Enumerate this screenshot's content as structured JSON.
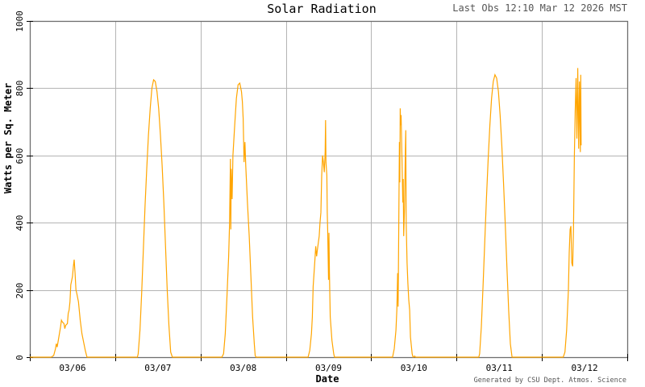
{
  "header": {
    "title": "Solar Radiation",
    "last_obs": "Last Obs 12:10 Mar 12 2026 MST"
  },
  "footer": {
    "credit": "Generated by CSU Dept. Atmos. Science"
  },
  "colors": {
    "series": "#ffa500",
    "grid": "#b4b4b4",
    "axis": "#6e6e6e",
    "text": "#000000",
    "muted_text": "#555555"
  },
  "chart_data": {
    "type": "line",
    "title": "Solar Radiation",
    "subtitle": "Last Obs 12:10 Mar 12 2026 MST",
    "xlabel": "Date",
    "ylabel": "Watts per Sq. Meter",
    "ylim": [
      0,
      1000
    ],
    "yticks": [
      0,
      200,
      400,
      600,
      800,
      1000
    ],
    "xticks": [
      "03/06",
      "03/07",
      "03/08",
      "03/09",
      "03/10",
      "03/11",
      "03/12"
    ],
    "xlim_days": [
      0,
      7
    ],
    "grid": true,
    "legend": null,
    "series": [
      {
        "name": "Solar Radiation",
        "x_unit": "days since 03/06 00:00",
        "points": [
          [
            0.0,
            0
          ],
          [
            0.25,
            0
          ],
          [
            0.28,
            5
          ],
          [
            0.3,
            25
          ],
          [
            0.31,
            40
          ],
          [
            0.32,
            30
          ],
          [
            0.34,
            60
          ],
          [
            0.36,
            90
          ],
          [
            0.37,
            110
          ],
          [
            0.38,
            105
          ],
          [
            0.4,
            100
          ],
          [
            0.41,
            85
          ],
          [
            0.42,
            95
          ],
          [
            0.44,
            100
          ],
          [
            0.45,
            130
          ],
          [
            0.46,
            140
          ],
          [
            0.47,
            165
          ],
          [
            0.48,
            215
          ],
          [
            0.5,
            240
          ],
          [
            0.51,
            270
          ],
          [
            0.52,
            290
          ],
          [
            0.53,
            250
          ],
          [
            0.54,
            200
          ],
          [
            0.55,
            190
          ],
          [
            0.57,
            165
          ],
          [
            0.59,
            110
          ],
          [
            0.61,
            70
          ],
          [
            0.63,
            45
          ],
          [
            0.65,
            20
          ],
          [
            0.67,
            0
          ],
          [
            1.0,
            0
          ],
          [
            1.26,
            0
          ],
          [
            1.27,
            10
          ],
          [
            1.29,
            80
          ],
          [
            1.31,
            190
          ],
          [
            1.33,
            320
          ],
          [
            1.35,
            450
          ],
          [
            1.37,
            560
          ],
          [
            1.39,
            660
          ],
          [
            1.41,
            740
          ],
          [
            1.43,
            800
          ],
          [
            1.45,
            825
          ],
          [
            1.47,
            820
          ],
          [
            1.49,
            790
          ],
          [
            1.51,
            740
          ],
          [
            1.53,
            660
          ],
          [
            1.55,
            570
          ],
          [
            1.57,
            460
          ],
          [
            1.59,
            330
          ],
          [
            1.61,
            200
          ],
          [
            1.63,
            95
          ],
          [
            1.65,
            15
          ],
          [
            1.67,
            0
          ],
          [
            2.0,
            0
          ],
          [
            2.25,
            0
          ],
          [
            2.27,
            10
          ],
          [
            2.29,
            70
          ],
          [
            2.31,
            180
          ],
          [
            2.33,
            300
          ],
          [
            2.34,
            395
          ],
          [
            2.35,
            590
          ],
          [
            2.355,
            380
          ],
          [
            2.36,
            560
          ],
          [
            2.37,
            470
          ],
          [
            2.38,
            600
          ],
          [
            2.4,
            690
          ],
          [
            2.42,
            770
          ],
          [
            2.44,
            810
          ],
          [
            2.46,
            815
          ],
          [
            2.48,
            790
          ],
          [
            2.49,
            760
          ],
          [
            2.5,
            710
          ],
          [
            2.51,
            580
          ],
          [
            2.52,
            640
          ],
          [
            2.53,
            570
          ],
          [
            2.55,
            460
          ],
          [
            2.57,
            360
          ],
          [
            2.59,
            240
          ],
          [
            2.61,
            120
          ],
          [
            2.63,
            40
          ],
          [
            2.64,
            5
          ],
          [
            2.65,
            0
          ],
          [
            3.0,
            0
          ],
          [
            3.26,
            0
          ],
          [
            3.28,
            20
          ],
          [
            3.3,
            70
          ],
          [
            3.31,
            120
          ],
          [
            3.32,
            210
          ],
          [
            3.33,
            250
          ],
          [
            3.34,
            290
          ],
          [
            3.35,
            330
          ],
          [
            3.36,
            300
          ],
          [
            3.37,
            320
          ],
          [
            3.38,
            340
          ],
          [
            3.39,
            360
          ],
          [
            3.4,
            400
          ],
          [
            3.41,
            430
          ],
          [
            3.42,
            540
          ],
          [
            3.43,
            600
          ],
          [
            3.44,
            580
          ],
          [
            3.45,
            550
          ],
          [
            3.46,
            610
          ],
          [
            3.465,
            705
          ],
          [
            3.47,
            580
          ],
          [
            3.48,
            540
          ],
          [
            3.485,
            430
          ],
          [
            3.49,
            380
          ],
          [
            3.5,
            230
          ],
          [
            3.505,
            370
          ],
          [
            3.51,
            250
          ],
          [
            3.52,
            120
          ],
          [
            3.54,
            50
          ],
          [
            3.56,
            10
          ],
          [
            3.57,
            0
          ],
          [
            4.0,
            0
          ],
          [
            4.25,
            0
          ],
          [
            4.27,
            25
          ],
          [
            4.29,
            80
          ],
          [
            4.3,
            140
          ],
          [
            4.31,
            250
          ],
          [
            4.315,
            150
          ],
          [
            4.32,
            300
          ],
          [
            4.33,
            640
          ],
          [
            4.335,
            520
          ],
          [
            4.34,
            740
          ],
          [
            4.345,
            690
          ],
          [
            4.35,
            720
          ],
          [
            4.36,
            600
          ],
          [
            4.37,
            460
          ],
          [
            4.375,
            530
          ],
          [
            4.38,
            360
          ],
          [
            4.39,
            440
          ],
          [
            4.4,
            620
          ],
          [
            4.405,
            675
          ],
          [
            4.41,
            400
          ],
          [
            4.42,
            280
          ],
          [
            4.43,
            220
          ],
          [
            4.44,
            170
          ],
          [
            4.45,
            140
          ],
          [
            4.46,
            60
          ],
          [
            4.48,
            10
          ],
          [
            4.49,
            0
          ],
          [
            4.51,
            3
          ],
          [
            4.52,
            0
          ],
          [
            5.0,
            0
          ],
          [
            5.26,
            0
          ],
          [
            5.27,
            10
          ],
          [
            5.29,
            90
          ],
          [
            5.31,
            210
          ],
          [
            5.33,
            340
          ],
          [
            5.35,
            470
          ],
          [
            5.37,
            590
          ],
          [
            5.39,
            690
          ],
          [
            5.41,
            770
          ],
          [
            5.43,
            820
          ],
          [
            5.45,
            840
          ],
          [
            5.47,
            830
          ],
          [
            5.49,
            790
          ],
          [
            5.51,
            720
          ],
          [
            5.53,
            630
          ],
          [
            5.55,
            520
          ],
          [
            5.57,
            400
          ],
          [
            5.59,
            270
          ],
          [
            5.61,
            140
          ],
          [
            5.63,
            40
          ],
          [
            5.65,
            0
          ],
          [
            6.0,
            0
          ],
          [
            6.25,
            0
          ],
          [
            6.27,
            15
          ],
          [
            6.29,
            80
          ],
          [
            6.31,
            200
          ],
          [
            6.32,
            310
          ],
          [
            6.33,
            380
          ],
          [
            6.34,
            390
          ],
          [
            6.35,
            280
          ],
          [
            6.36,
            270
          ],
          [
            6.37,
            380
          ],
          [
            6.38,
            600
          ],
          [
            6.39,
            730
          ],
          [
            6.4,
            830
          ],
          [
            6.41,
            650
          ],
          [
            6.415,
            760
          ],
          [
            6.42,
            860
          ],
          [
            6.43,
            620
          ],
          [
            6.44,
            820
          ],
          [
            6.45,
            610
          ],
          [
            6.455,
            840
          ],
          [
            6.46,
            630
          ]
        ]
      }
    ]
  }
}
